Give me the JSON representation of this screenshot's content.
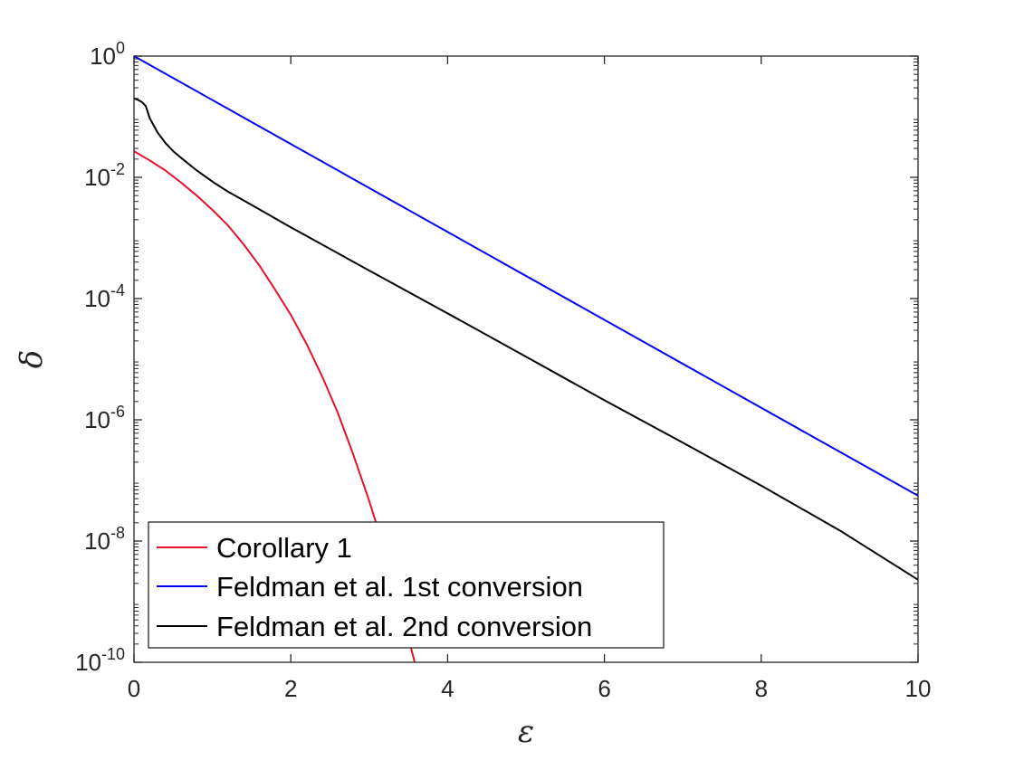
{
  "chart_data": {
    "type": "line",
    "title": "",
    "xlabel": "ε",
    "ylabel": "δ",
    "xlim": [
      0,
      10
    ],
    "ylim": [
      1e-10,
      1
    ],
    "yscale": "log",
    "grid": false,
    "legend_position": "bottom-left",
    "x_ticks": [
      0,
      2,
      4,
      6,
      8,
      10
    ],
    "x_tick_labels": [
      "0",
      "2",
      "4",
      "6",
      "8",
      "10"
    ],
    "y_ticks": [
      1e-10,
      1e-08,
      1e-06,
      0.0001,
      0.01,
      1
    ],
    "y_tick_labels": [
      {
        "base": "10",
        "exp": "-10"
      },
      {
        "base": "10",
        "exp": "-8"
      },
      {
        "base": "10",
        "exp": "-6"
      },
      {
        "base": "10",
        "exp": "-4"
      },
      {
        "base": "10",
        "exp": "-2"
      },
      {
        "base": "10",
        "exp": "0"
      }
    ],
    "series": [
      {
        "name": "Corollary 1",
        "color": "#e8112d",
        "x": [
          0,
          0.2,
          0.4,
          0.6,
          0.8,
          1.0,
          1.2,
          1.4,
          1.6,
          1.8,
          2.0,
          2.2,
          2.4,
          2.6,
          2.8,
          3.0,
          3.2,
          3.4,
          3.6,
          3.8
        ],
        "y": [
          0.027,
          0.019,
          0.013,
          0.0082,
          0.005,
          0.0029,
          0.0016,
          0.00078,
          0.00035,
          0.00014,
          5.4e-05,
          1.8e-05,
          5.2e-06,
          1.3e-06,
          2.6e-07,
          4.6e-08,
          6.8e-09,
          8.2e-10,
          7.9e-11,
          6e-12
        ]
      },
      {
        "name": "Feldman et al. 1st conversion",
        "color": "#0000ee",
        "x": [
          0,
          10
        ],
        "y": [
          1.0,
          5.6e-08
        ]
      },
      {
        "name": "Feldman et al. 2nd conversion",
        "color": "#000000",
        "x": [
          0,
          0.05,
          0.1,
          0.15,
          0.2,
          0.3,
          0.4,
          0.5,
          0.6,
          0.8,
          1.0,
          1.2,
          1.5,
          2.0,
          3.0,
          4.0,
          5.0,
          6.0,
          7.0,
          8.0,
          9.0,
          10.0
        ],
        "y": [
          0.2,
          0.19,
          0.175,
          0.15,
          0.095,
          0.055,
          0.037,
          0.027,
          0.021,
          0.013,
          0.0085,
          0.0058,
          0.0035,
          0.0015,
          0.00029,
          5.7e-05,
          1.1e-05,
          2.1e-06,
          4.2e-07,
          8.2e-08,
          1.5e-08,
          2.3e-09
        ]
      }
    ]
  }
}
